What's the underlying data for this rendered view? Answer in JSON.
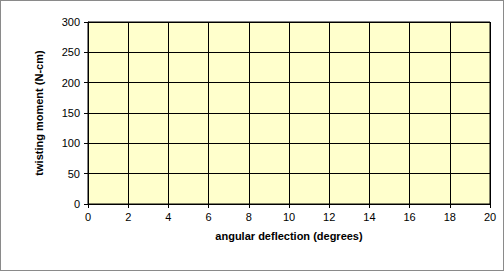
{
  "chart_data": {
    "type": "scatter",
    "x_label": "angular deflection (degrees)",
    "y_label": "twisting moment (N-cm)",
    "x": [],
    "values": [],
    "xlim": [
      0,
      20
    ],
    "xticks": [
      0,
      2,
      4,
      6,
      8,
      10,
      12,
      14,
      16,
      18,
      20
    ],
    "ylim": [
      0,
      300
    ],
    "yticks": [
      0,
      50,
      100,
      150,
      200,
      250,
      300
    ],
    "grid": true
  }
}
